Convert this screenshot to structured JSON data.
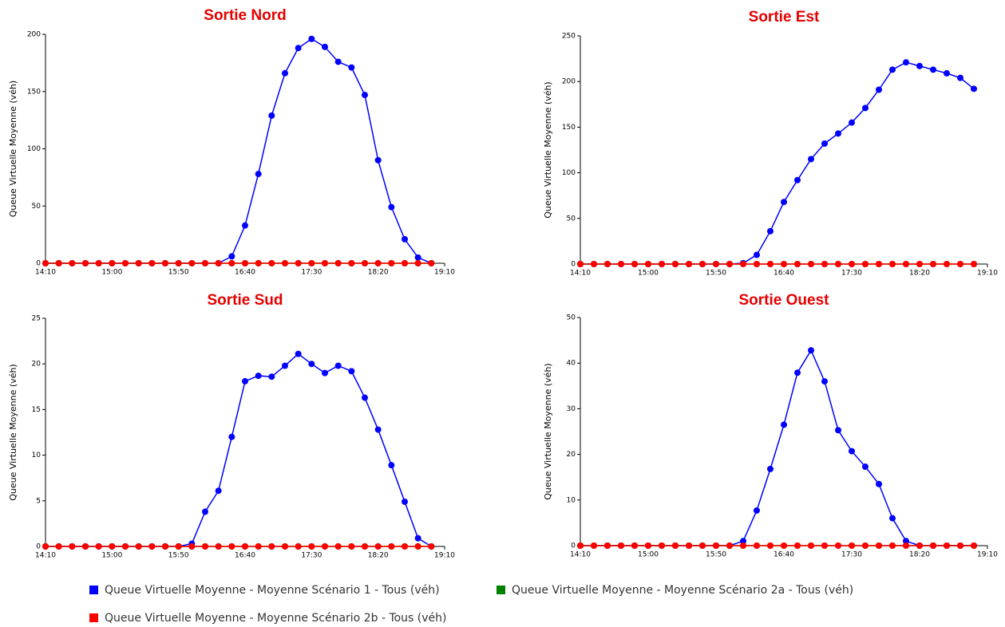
{
  "chart_data": [
    {
      "type": "line",
      "title": "Sortie Nord",
      "y_label": "Queue Virtuelle Moyenne (véh)",
      "x": [
        "14:10",
        "14:20",
        "14:30",
        "14:40",
        "14:50",
        "15:00",
        "15:10",
        "15:20",
        "15:30",
        "15:40",
        "15:50",
        "16:00",
        "16:10",
        "16:20",
        "16:30",
        "16:40",
        "16:50",
        "17:00",
        "17:10",
        "17:20",
        "17:30",
        "17:40",
        "17:50",
        "18:00",
        "18:10",
        "18:20",
        "18:30",
        "18:40",
        "18:50",
        "19:00"
      ],
      "xlim": [
        "14:10",
        "19:10"
      ],
      "xticks": [
        "14:10",
        "15:00",
        "15:50",
        "16:40",
        "17:30",
        "18:20",
        "19:10"
      ],
      "ylim": [
        0,
        200
      ],
      "yticks": [
        0,
        50,
        100,
        150,
        200
      ],
      "series": [
        {
          "name": "Queue Virtuelle Moyenne - Moyenne Scénario 1 - Tous (véh)",
          "color": "#0000ff",
          "values": [
            0,
            0,
            0,
            0,
            0,
            0,
            0,
            0,
            0,
            0,
            0,
            0,
            0,
            0,
            6,
            33,
            78,
            129,
            166,
            188,
            196,
            189,
            176,
            171,
            147,
            90,
            49,
            21,
            5,
            0
          ]
        },
        {
          "name": "Queue Virtuelle Moyenne - Moyenne Scénario 2a - Tous (véh)",
          "color": "#008000",
          "values": [
            0,
            0,
            0,
            0,
            0,
            0,
            0,
            0,
            0,
            0,
            0,
            0,
            0,
            0,
            0,
            0,
            0,
            0,
            0,
            0,
            0,
            0,
            0,
            0,
            0,
            0,
            0,
            0,
            0,
            0
          ]
        },
        {
          "name": "Queue Virtuelle Moyenne - Moyenne Scénario 2b - Tous (véh)",
          "color": "#ff0000",
          "values": [
            0,
            0,
            0,
            0,
            0,
            0,
            0,
            0,
            0,
            0,
            0,
            0,
            0,
            0,
            0,
            0,
            0,
            0,
            0,
            0,
            0,
            0,
            0,
            0,
            0,
            0,
            0,
            0,
            0,
            0
          ]
        }
      ]
    },
    {
      "type": "line",
      "title": "Sortie Est",
      "y_label": "Queue Virtuelle Moyenne (véh)",
      "x": [
        "14:10",
        "14:20",
        "14:30",
        "14:40",
        "14:50",
        "15:00",
        "15:10",
        "15:20",
        "15:30",
        "15:40",
        "15:50",
        "16:00",
        "16:10",
        "16:20",
        "16:30",
        "16:40",
        "16:50",
        "17:00",
        "17:10",
        "17:20",
        "17:30",
        "17:40",
        "17:50",
        "18:00",
        "18:10",
        "18:20",
        "18:30",
        "18:40",
        "18:50",
        "19:00"
      ],
      "xlim": [
        "14:10",
        "19:10"
      ],
      "xticks": [
        "14:10",
        "15:00",
        "15:50",
        "16:40",
        "17:30",
        "18:20",
        "19:10"
      ],
      "ylim": [
        0,
        250
      ],
      "yticks": [
        0,
        50,
        100,
        150,
        200,
        250
      ],
      "series": [
        {
          "name": "Queue Virtuelle Moyenne - Moyenne Scénario 1 - Tous (véh)",
          "color": "#0000ff",
          "values": [
            0,
            0,
            0,
            0,
            0,
            0,
            0,
            0,
            0,
            0,
            0,
            0,
            1,
            10,
            36,
            68,
            92,
            115,
            132,
            143,
            155,
            171,
            191,
            213,
            221,
            217,
            213,
            209,
            204,
            192
          ]
        },
        {
          "name": "Queue Virtuelle Moyenne - Moyenne Scénario 2a - Tous (véh)",
          "color": "#008000",
          "values": [
            0,
            0,
            0,
            0,
            0,
            0,
            0,
            0,
            0,
            0,
            0,
            0,
            0,
            0,
            0,
            0,
            0,
            0,
            0,
            0,
            0,
            0,
            0,
            0,
            0,
            0,
            0,
            0,
            0,
            0
          ]
        },
        {
          "name": "Queue Virtuelle Moyenne - Moyenne Scénario 2b - Tous (véh)",
          "color": "#ff0000",
          "values": [
            0,
            0,
            0,
            0,
            0,
            0,
            0,
            0,
            0,
            0,
            0,
            0,
            0,
            0,
            0,
            0,
            0,
            0,
            0,
            0,
            0,
            0,
            0,
            0,
            0,
            0,
            0,
            0,
            0,
            0
          ]
        }
      ]
    },
    {
      "type": "line",
      "title": "Sortie Sud",
      "y_label": "Queue Virtuelle Moyenne (véh)",
      "x": [
        "14:10",
        "14:20",
        "14:30",
        "14:40",
        "14:50",
        "15:00",
        "15:10",
        "15:20",
        "15:30",
        "15:40",
        "15:50",
        "16:00",
        "16:10",
        "16:20",
        "16:30",
        "16:40",
        "16:50",
        "17:00",
        "17:10",
        "17:20",
        "17:30",
        "17:40",
        "17:50",
        "18:00",
        "18:10",
        "18:20",
        "18:30",
        "18:40",
        "18:50",
        "19:00"
      ],
      "xlim": [
        "14:10",
        "19:10"
      ],
      "xticks": [
        "14:10",
        "15:00",
        "15:50",
        "16:40",
        "17:30",
        "18:20",
        "19:10"
      ],
      "ylim": [
        0,
        25
      ],
      "yticks": [
        0,
        5,
        10,
        15,
        20,
        25
      ],
      "series": [
        {
          "name": "Queue Virtuelle Moyenne - Moyenne Scénario 1 - Tous (véh)",
          "color": "#0000ff",
          "values": [
            0,
            0,
            0,
            0,
            0,
            0,
            0,
            0,
            0,
            0,
            0,
            0.3,
            3.8,
            6.1,
            12,
            18.1,
            18.7,
            18.6,
            19.8,
            21.1,
            20,
            19,
            19.8,
            19.2,
            16.3,
            12.8,
            8.9,
            4.9,
            0.9,
            0
          ]
        },
        {
          "name": "Queue Virtuelle Moyenne - Moyenne Scénario 2a - Tous (véh)",
          "color": "#008000",
          "values": [
            0,
            0,
            0,
            0,
            0,
            0,
            0,
            0,
            0,
            0,
            0,
            0,
            0,
            0,
            0,
            0,
            0,
            0,
            0,
            0,
            0,
            0,
            0,
            0,
            0,
            0,
            0,
            0,
            0,
            0
          ]
        },
        {
          "name": "Queue Virtuelle Moyenne - Moyenne Scénario 2b - Tous (véh)",
          "color": "#ff0000",
          "values": [
            0,
            0,
            0,
            0,
            0,
            0,
            0,
            0,
            0,
            0,
            0,
            0,
            0,
            0,
            0,
            0,
            0,
            0,
            0,
            0,
            0,
            0,
            0,
            0,
            0,
            0,
            0,
            0,
            0,
            0
          ]
        }
      ]
    },
    {
      "type": "line",
      "title": "Sortie Ouest",
      "y_label": "Queue Virtuelle Moyenne (véh)",
      "x": [
        "14:10",
        "14:20",
        "14:30",
        "14:40",
        "14:50",
        "15:00",
        "15:10",
        "15:20",
        "15:30",
        "15:40",
        "15:50",
        "16:00",
        "16:10",
        "16:20",
        "16:30",
        "16:40",
        "16:50",
        "17:00",
        "17:10",
        "17:20",
        "17:30",
        "17:40",
        "17:50",
        "18:00",
        "18:10",
        "18:20",
        "18:30",
        "18:40",
        "18:50",
        "19:00"
      ],
      "xlim": [
        "14:10",
        "19:10"
      ],
      "xticks": [
        "14:10",
        "15:00",
        "15:50",
        "16:40",
        "17:30",
        "18:20",
        "19:10"
      ],
      "ylim": [
        0,
        50
      ],
      "yticks": [
        0,
        10,
        20,
        30,
        40,
        50
      ],
      "series": [
        {
          "name": "Queue Virtuelle Moyenne - Moyenne Scénario 1 - Tous (véh)",
          "color": "#0000ff",
          "values": [
            0,
            0,
            0,
            0,
            0,
            0,
            0,
            0,
            0,
            0,
            0,
            0,
            1,
            7.7,
            16.8,
            26.5,
            37.9,
            42.8,
            36,
            25.3,
            20.7,
            17.3,
            13.5,
            6,
            1,
            0,
            0,
            0,
            0,
            0
          ]
        },
        {
          "name": "Queue Virtuelle Moyenne - Moyenne Scénario 2a - Tous (véh)",
          "color": "#008000",
          "values": [
            0,
            0,
            0,
            0,
            0,
            0,
            0,
            0,
            0,
            0,
            0,
            0,
            0,
            0,
            0,
            0,
            0,
            0,
            0,
            0,
            0,
            0,
            0,
            0,
            0,
            0,
            0,
            0,
            0,
            0
          ]
        },
        {
          "name": "Queue Virtuelle Moyenne - Moyenne Scénario 2b - Tous (véh)",
          "color": "#ff0000",
          "values": [
            0,
            0,
            0,
            0,
            0,
            0,
            0,
            0,
            0,
            0,
            0,
            0,
            0,
            0,
            0,
            0,
            0,
            0,
            0,
            0,
            0,
            0,
            0,
            0,
            0,
            0,
            0,
            0,
            0,
            0
          ]
        }
      ]
    }
  ]
}
